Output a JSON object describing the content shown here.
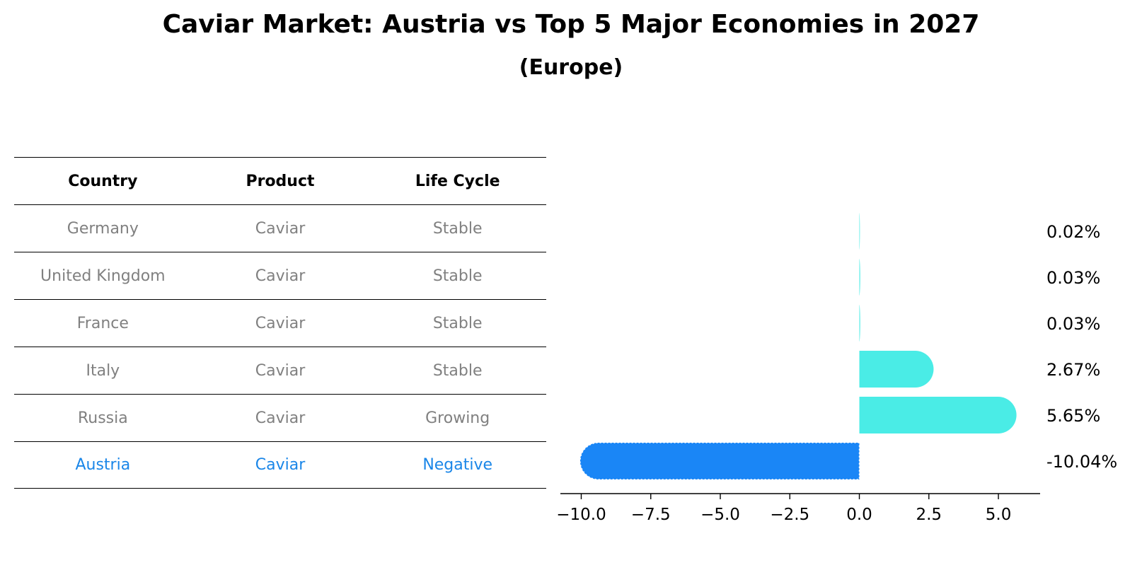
{
  "title": "Caviar Market: Austria vs Top 5 Major Economies in 2027",
  "subtitle": "(Europe)",
  "table": {
    "headers": [
      "Country",
      "Product",
      "Life Cycle"
    ],
    "rows": [
      [
        "Germany",
        "Caviar",
        "Stable"
      ],
      [
        "United Kingdom",
        "Caviar",
        "Stable"
      ],
      [
        "France",
        "Caviar",
        "Stable"
      ],
      [
        "Italy",
        "Caviar",
        "Stable"
      ],
      [
        "Russia",
        "Caviar",
        "Growing"
      ],
      [
        "Austria",
        "Caviar",
        "Negative"
      ]
    ]
  },
  "chart_data": {
    "type": "bar",
    "orientation": "horizontal",
    "categories": [
      "Germany",
      "United Kingdom",
      "France",
      "Italy",
      "Russia",
      "Austria"
    ],
    "values": [
      0.02,
      0.03,
      0.03,
      2.67,
      5.65,
      -10.04
    ],
    "value_labels": [
      "0.02%",
      "0.03%",
      "0.03%",
      "2.67%",
      "5.65%",
      "-10.04%"
    ],
    "highlight": "Austria",
    "colors": {
      "normal": "#4aece6",
      "highlight": "#1a86f6"
    },
    "xlim": [
      -10.75,
      6.5
    ],
    "xticks": [
      -10.0,
      -7.5,
      -5.0,
      -2.5,
      0.0,
      2.5,
      5.0
    ],
    "xtick_labels": [
      "−10.0",
      "−7.5",
      "−5.0",
      "−2.5",
      "0.0",
      "2.5",
      "5.0"
    ]
  }
}
